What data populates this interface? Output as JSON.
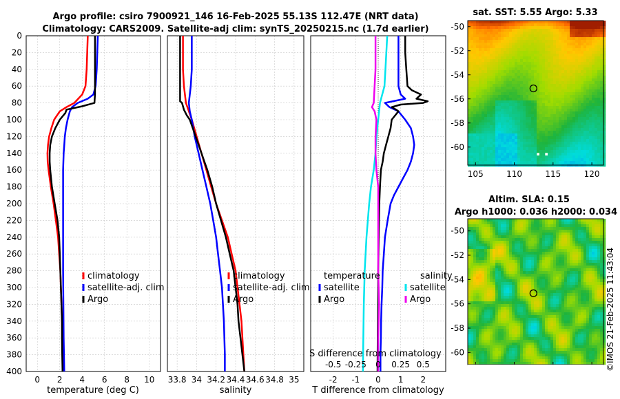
{
  "figure": {
    "title_line1": "Argo profile: csiro 7900921_146 16-Feb-2025 55.13S 112.47E (NRT data)",
    "title_line2": "Climatology: CARS2009. Satellite-adj clim: synTS_20250215.nc (1.7d earlier)",
    "credit": "©IMOS 21-Feb-2025 11:43:04"
  },
  "colors": {
    "climatology": "#ff0000",
    "satellite": "#0000ff",
    "argo": "#000000",
    "sal_satellite": "#00e5ee",
    "sal_argo": "#ee00ee"
  },
  "chart_data": [
    {
      "id": "temperature",
      "type": "line",
      "xlabel": "temperature (deg C)",
      "ylabel": "",
      "xlim": [
        -1,
        11
      ],
      "ylim": [
        400,
        0
      ],
      "xticks": [
        0,
        2,
        4,
        6,
        8,
        10
      ],
      "yticks": [
        0,
        20,
        40,
        60,
        80,
        100,
        120,
        140,
        160,
        180,
        200,
        220,
        240,
        260,
        280,
        300,
        320,
        340,
        360,
        380,
        400
      ],
      "legend": [
        "climatology",
        "satellite-adj. clim",
        "Argo"
      ],
      "series": [
        {
          "name": "climatology",
          "color": "#ff0000",
          "depth": [
            0,
            20,
            40,
            60,
            70,
            80,
            85,
            90,
            100,
            110,
            120,
            130,
            140,
            150,
            160,
            180,
            200,
            220,
            240,
            260,
            280,
            300,
            320,
            340,
            360,
            380,
            400
          ],
          "values": [
            4.5,
            4.45,
            4.4,
            4.3,
            4.0,
            3.3,
            2.6,
            2.0,
            1.5,
            1.25,
            1.05,
            0.95,
            0.9,
            0.92,
            1.0,
            1.2,
            1.45,
            1.65,
            1.85,
            1.95,
            2.05,
            2.1,
            2.15,
            2.2,
            2.22,
            2.25,
            2.28
          ]
        },
        {
          "name": "satellite-adj. clim",
          "color": "#0000ff",
          "depth": [
            0,
            20,
            40,
            60,
            70,
            75,
            80,
            85,
            90,
            100,
            110,
            120,
            130,
            140,
            160,
            180,
            200,
            240,
            280,
            320,
            360,
            400
          ],
          "values": [
            5.4,
            5.35,
            5.3,
            5.2,
            5.0,
            4.5,
            3.6,
            3.1,
            2.9,
            2.7,
            2.55,
            2.45,
            2.4,
            2.35,
            2.3,
            2.3,
            2.3,
            2.3,
            2.3,
            2.32,
            2.35,
            2.4
          ]
        },
        {
          "name": "Argo",
          "color": "#000000",
          "depth": [
            0,
            20,
            40,
            60,
            70,
            80,
            84,
            88,
            92,
            100,
            110,
            120,
            130,
            140,
            150,
            160,
            180,
            200,
            220,
            240,
            260,
            280,
            300,
            320,
            340,
            360,
            380,
            400
          ],
          "values": [
            5.15,
            5.15,
            5.15,
            5.15,
            5.15,
            5.1,
            4.0,
            2.6,
            2.5,
            2.0,
            1.6,
            1.3,
            1.15,
            1.1,
            1.1,
            1.15,
            1.3,
            1.55,
            1.8,
            1.95,
            2.0,
            2.05,
            2.1,
            2.15,
            2.2,
            2.2,
            2.22,
            2.25
          ]
        }
      ]
    },
    {
      "id": "salinity",
      "type": "line",
      "xlabel": "salinity",
      "ylabel": "",
      "xlim": [
        33.7,
        35.1
      ],
      "ylim": [
        400,
        0
      ],
      "xticks": [
        "33.8",
        "34",
        "34.2",
        "34.4",
        "34.6",
        "34.8",
        "35"
      ],
      "legend": [
        "climatology",
        "satellite-adj. clim",
        "Argo"
      ],
      "series": [
        {
          "name": "climatology",
          "color": "#ff0000",
          "depth": [
            0,
            20,
            40,
            60,
            80,
            100,
            120,
            140,
            160,
            180,
            200,
            220,
            240,
            260,
            280,
            300,
            320,
            340,
            360,
            380,
            400
          ],
          "values": [
            33.86,
            33.86,
            33.86,
            33.87,
            33.89,
            33.95,
            34.0,
            34.05,
            34.1,
            34.15,
            34.2,
            34.26,
            34.32,
            34.36,
            34.4,
            34.42,
            34.44,
            34.46,
            34.47,
            34.48,
            34.49
          ]
        },
        {
          "name": "satellite-adj. clim",
          "color": "#0000ff",
          "depth": [
            0,
            20,
            40,
            60,
            70,
            80,
            90,
            100,
            120,
            140,
            160,
            180,
            200,
            220,
            240,
            260,
            280,
            300,
            320,
            340,
            360,
            380,
            400
          ],
          "values": [
            33.95,
            33.95,
            33.95,
            33.94,
            33.93,
            33.92,
            33.93,
            33.95,
            33.98,
            34.02,
            34.06,
            34.1,
            34.14,
            34.17,
            34.2,
            34.22,
            34.24,
            34.26,
            34.27,
            34.28,
            34.285,
            34.29,
            34.29
          ]
        },
        {
          "name": "Argo",
          "color": "#000000",
          "depth": [
            0,
            20,
            40,
            60,
            78,
            80,
            84,
            88,
            95,
            100,
            110,
            120,
            130,
            140,
            150,
            160,
            180,
            200,
            220,
            240,
            260,
            280,
            300,
            320,
            340,
            360,
            380,
            400
          ],
          "values": [
            33.83,
            33.83,
            33.83,
            33.83,
            33.83,
            33.85,
            33.86,
            33.87,
            33.9,
            33.93,
            33.96,
            33.99,
            34.02,
            34.05,
            34.08,
            34.11,
            34.16,
            34.2,
            34.25,
            34.3,
            34.34,
            34.38,
            34.4,
            34.42,
            34.43,
            34.45,
            34.47,
            34.49
          ]
        }
      ]
    },
    {
      "id": "difference",
      "type": "line",
      "xlabel": "T difference from climatology",
      "top_label": "S difference from climatology",
      "xlim": [
        -3,
        3
      ],
      "top_xlim": [
        -0.75,
        0.75
      ],
      "ylim": [
        400,
        0
      ],
      "xticks": [
        "-2",
        "-1",
        "0",
        "1",
        "2"
      ],
      "top_xticks": [
        "-0.5",
        "-0.25",
        "0",
        "0.25",
        "0.5"
      ],
      "legend_temperature_title": "temperature",
      "legend_salinity_title": "salinity",
      "legend_temperature": [
        "satellite",
        "Argo"
      ],
      "legend_salinity": [
        "satellite",
        "Argo"
      ],
      "series": [
        {
          "name": "T satellite",
          "axis": "T",
          "color": "#0000ff",
          "depth": [
            0,
            20,
            40,
            60,
            70,
            75,
            80,
            85,
            90,
            100,
            110,
            120,
            130,
            140,
            150,
            160,
            170,
            180,
            190,
            200,
            220,
            240,
            260,
            280,
            300,
            320,
            340,
            360,
            380,
            400
          ],
          "values": [
            0.9,
            0.9,
            0.9,
            0.9,
            1.0,
            1.2,
            0.3,
            0.5,
            0.9,
            1.2,
            1.45,
            1.55,
            1.6,
            1.55,
            1.45,
            1.3,
            1.1,
            0.9,
            0.7,
            0.55,
            0.42,
            0.3,
            0.25,
            0.2,
            0.18,
            0.15,
            0.13,
            0.12,
            0.1,
            0.1
          ]
        },
        {
          "name": "T Argo",
          "axis": "T",
          "color": "#000000",
          "depth": [
            0,
            20,
            40,
            60,
            65,
            70,
            75,
            78,
            80,
            82,
            85,
            88,
            90,
            95,
            100,
            110,
            120,
            130,
            140,
            150,
            160,
            180,
            200,
            240,
            280,
            320,
            360,
            400
          ],
          "values": [
            1.2,
            1.2,
            1.25,
            1.3,
            1.5,
            1.9,
            1.7,
            2.2,
            2.0,
            1.0,
            0.6,
            0.8,
            0.9,
            0.75,
            0.6,
            0.55,
            0.45,
            0.35,
            0.25,
            0.2,
            0.12,
            0.08,
            0.05,
            0.02,
            0.0,
            0.0,
            -0.02,
            -0.03
          ]
        },
        {
          "name": "S satellite",
          "axis": "S",
          "color": "#00e5ee",
          "depth": [
            0,
            20,
            40,
            60,
            80,
            100,
            120,
            140,
            160,
            180,
            200,
            240,
            280,
            320,
            360,
            400
          ],
          "values": [
            0.1,
            0.09,
            0.08,
            0.07,
            0.02,
            0.0,
            -0.02,
            -0.03,
            -0.05,
            -0.08,
            -0.1,
            -0.13,
            -0.15,
            -0.16,
            -0.165,
            -0.17
          ]
        },
        {
          "name": "S Argo",
          "axis": "S",
          "color": "#ee00ee",
          "depth": [
            0,
            20,
            40,
            60,
            80,
            85,
            90,
            100,
            120,
            140,
            160,
            180,
            200,
            240,
            280,
            320,
            360,
            400
          ],
          "values": [
            -0.03,
            -0.03,
            -0.03,
            -0.04,
            -0.05,
            -0.07,
            -0.04,
            -0.02,
            -0.03,
            -0.03,
            -0.02,
            0.0,
            0.0,
            0.0,
            0.0,
            0.01,
            0.0,
            0.0
          ]
        }
      ]
    },
    {
      "id": "sst_map",
      "type": "heatmap",
      "title": "sat. SST: 5.55 Argo: 5.33",
      "xlim": [
        104,
        121.5
      ],
      "ylim": [
        -61.5,
        -49.5
      ],
      "xticks": [
        "105",
        "110",
        "115",
        "120"
      ],
      "yticks": [
        "-50",
        "-52",
        "-54",
        "-56",
        "-58",
        "-60"
      ],
      "marker": [
        112.47,
        -55.13
      ]
    },
    {
      "id": "sla_map",
      "type": "heatmap",
      "title_line1": "Altim. SLA: 0.15",
      "title_line2": "Argo h1000: 0.036 h2000: 0.034",
      "xlim": [
        104,
        121.5
      ],
      "ylim": [
        -61,
        -49
      ],
      "xticks": [
        "105",
        "110",
        "115",
        "120"
      ],
      "yticks": [
        "-50",
        "-52",
        "-54",
        "-56",
        "-58",
        "-60"
      ],
      "marker": [
        112.47,
        -55.13
      ]
    }
  ]
}
